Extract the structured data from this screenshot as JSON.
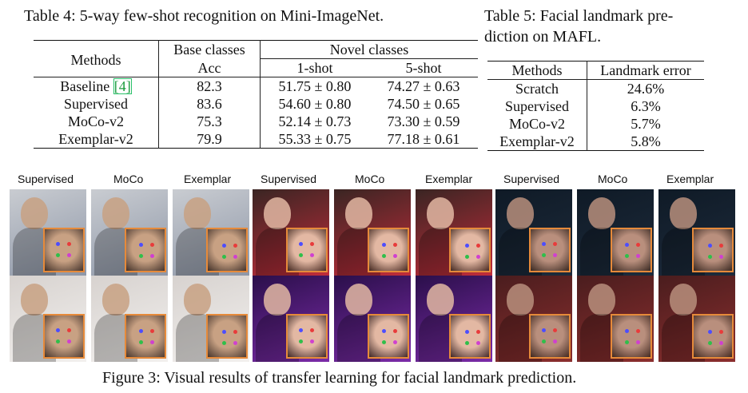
{
  "table4": {
    "caption": "Table 4: 5-way few-shot recognition on Mini-ImageNet.",
    "headers": {
      "methods": "Methods",
      "base_classes": "Base classes",
      "novel_classes": "Novel classes",
      "acc": "Acc",
      "one_shot": "1-shot",
      "five_shot": "5-shot"
    },
    "rows": [
      {
        "method": "Baseline ",
        "cite": "[4]",
        "acc": "82.3",
        "one": "51.75 ± 0.80",
        "five": "74.27 ± 0.63"
      },
      {
        "method": "Supervised",
        "cite": "",
        "acc": "83.6",
        "one": "54.60 ± 0.80",
        "five": "74.50 ± 0.65"
      },
      {
        "method": "MoCo-v2",
        "cite": "",
        "acc": "75.3",
        "one": "52.14 ± 0.73",
        "five": "73.30 ± 0.59"
      },
      {
        "method": "Exemplar-v2",
        "cite": "",
        "acc": "79.9",
        "one": "55.33 ± 0.75",
        "five": "77.18 ± 0.61"
      }
    ]
  },
  "table5": {
    "caption_line1": "Table 5: Facial landmark pre-",
    "caption_line2": "diction on MAFL.",
    "headers": {
      "methods": "Methods",
      "error": "Landmark error"
    },
    "rows": [
      {
        "method": "Scratch",
        "error": "24.6%"
      },
      {
        "method": "Supervised",
        "error": "6.3%"
      },
      {
        "method": "MoCo-v2",
        "error": "5.7%"
      },
      {
        "method": "Exemplar-v2",
        "error": "5.8%"
      }
    ]
  },
  "figure": {
    "column_labels": [
      "Supervised",
      "MoCo",
      "Exemplar",
      "Supervised",
      "MoCo",
      "Exemplar",
      "Supervised",
      "MoCo",
      "Exemplar"
    ],
    "caption": "Figure 3: Visual results of transfer learning for facial landmark prediction.",
    "colors": {
      "inset_border": "#e68a3a"
    }
  }
}
